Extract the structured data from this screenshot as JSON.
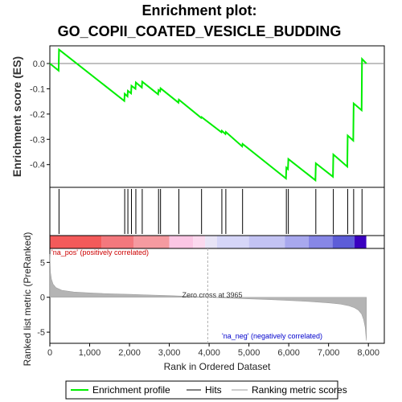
{
  "chart_data": {
    "type": "line",
    "title_line1": "Enrichment plot:",
    "title_line2": "GO_COPII_COATED_VESICLE_BUDDING",
    "es_ylabel": "Enrichment score (ES)",
    "metric_ylabel": "Ranked list metric (PreRanked)",
    "xlabel": "Rank in Ordered Dataset",
    "xlim": [
      0,
      8400
    ],
    "x_ticks": [
      0,
      1000,
      2000,
      3000,
      4000,
      5000,
      6000,
      7000,
      8000
    ],
    "es_ylim": [
      -0.49,
      0.07
    ],
    "es_ticks": [
      0.0,
      -0.1,
      -0.2,
      -0.3,
      -0.4
    ],
    "metric_ylim": [
      -6.6,
      7.0
    ],
    "metric_ticks": [
      5,
      0,
      -5
    ],
    "zero_cross_label": "Zero cross at 3965",
    "zero_cross": 3965,
    "pos_label": "'na_pos' (positively correlated)",
    "neg_label": "'na_neg' (negatively correlated)",
    "total_genes": 7950,
    "hits": [
      230,
      1880,
      1960,
      2050,
      2160,
      2320,
      2730,
      2780,
      3240,
      3810,
      4320,
      4420,
      4840,
      5940,
      5990,
      6680,
      7120,
      7480,
      7630,
      7840
    ],
    "es_curve": [
      [
        0,
        0.0
      ],
      [
        220,
        -0.028
      ],
      [
        230,
        0.055
      ],
      [
        1870,
        -0.148
      ],
      [
        1880,
        -0.12
      ],
      [
        1950,
        -0.13
      ],
      [
        1960,
        -0.108
      ],
      [
        2040,
        -0.118
      ],
      [
        2050,
        -0.088
      ],
      [
        2150,
        -0.1
      ],
      [
        2160,
        -0.075
      ],
      [
        2310,
        -0.095
      ],
      [
        2320,
        -0.072
      ],
      [
        2720,
        -0.122
      ],
      [
        2730,
        -0.105
      ],
      [
        2770,
        -0.11
      ],
      [
        2780,
        -0.098
      ],
      [
        3230,
        -0.155
      ],
      [
        3240,
        -0.143
      ],
      [
        3800,
        -0.215
      ],
      [
        3810,
        -0.212
      ],
      [
        4310,
        -0.272
      ],
      [
        4320,
        -0.266
      ],
      [
        4410,
        -0.279
      ],
      [
        4420,
        -0.271
      ],
      [
        4830,
        -0.328
      ],
      [
        4840,
        -0.318
      ],
      [
        5930,
        -0.455
      ],
      [
        5940,
        -0.412
      ],
      [
        5980,
        -0.418
      ],
      [
        5990,
        -0.378
      ],
      [
        6670,
        -0.462
      ],
      [
        6680,
        -0.395
      ],
      [
        7110,
        -0.448
      ],
      [
        7120,
        -0.36
      ],
      [
        7470,
        -0.408
      ],
      [
        7480,
        -0.285
      ],
      [
        7620,
        -0.305
      ],
      [
        7630,
        -0.158
      ],
      [
        7830,
        -0.185
      ],
      [
        7840,
        0.018
      ],
      [
        7950,
        0.0
      ]
    ],
    "metric_curve": [
      [
        0,
        6.2
      ],
      [
        15,
        3.6
      ],
      [
        40,
        2.6
      ],
      [
        80,
        1.9
      ],
      [
        150,
        1.4
      ],
      [
        300,
        1.0
      ],
      [
        600,
        0.75
      ],
      [
        1000,
        0.62
      ],
      [
        1500,
        0.5
      ],
      [
        2000,
        0.42
      ],
      [
        2500,
        0.33
      ],
      [
        3000,
        0.24
      ],
      [
        3500,
        0.12
      ],
      [
        3965,
        0.0
      ],
      [
        4500,
        -0.12
      ],
      [
        5000,
        -0.22
      ],
      [
        5500,
        -0.33
      ],
      [
        6000,
        -0.45
      ],
      [
        6500,
        -0.6
      ],
      [
        7000,
        -0.8
      ],
      [
        7300,
        -0.98
      ],
      [
        7500,
        -1.2
      ],
      [
        7650,
        -1.5
      ],
      [
        7750,
        -1.85
      ],
      [
        7830,
        -2.4
      ],
      [
        7880,
        -3.2
      ],
      [
        7920,
        -4.3
      ],
      [
        7950,
        -6.2
      ]
    ],
    "ranking_bar_segments": [
      {
        "from": 0,
        "to": 1300,
        "color": "#f35a5a"
      },
      {
        "from": 1300,
        "to": 2100,
        "color": "#f3787d"
      },
      {
        "from": 2100,
        "to": 3000,
        "color": "#f59aa0"
      },
      {
        "from": 3000,
        "to": 3600,
        "color": "#fbc6e4"
      },
      {
        "from": 3600,
        "to": 3900,
        "color": "#fbd9ee"
      },
      {
        "from": 3900,
        "to": 4200,
        "color": "#e8e4f6"
      },
      {
        "from": 4200,
        "to": 5000,
        "color": "#d6d6f8"
      },
      {
        "from": 5000,
        "to": 5900,
        "color": "#c3c3f3"
      },
      {
        "from": 5900,
        "to": 6500,
        "color": "#a8a8ee"
      },
      {
        "from": 6500,
        "to": 7100,
        "color": "#8787e6"
      },
      {
        "from": 7100,
        "to": 7650,
        "color": "#5d5dd8"
      },
      {
        "from": 7650,
        "to": 7950,
        "color": "#3a00c0"
      }
    ],
    "legend": [
      "Enrichment profile",
      "Hits",
      "Ranking metric scores"
    ],
    "colors": {
      "es_line": "#00ee00",
      "hits": "#000000",
      "metric_fill": "#b4b4b4",
      "zero_line": "#808080",
      "pos_label": "#cc0000",
      "neg_label": "#0000cc",
      "legend_ranking": "#cccccc"
    }
  }
}
